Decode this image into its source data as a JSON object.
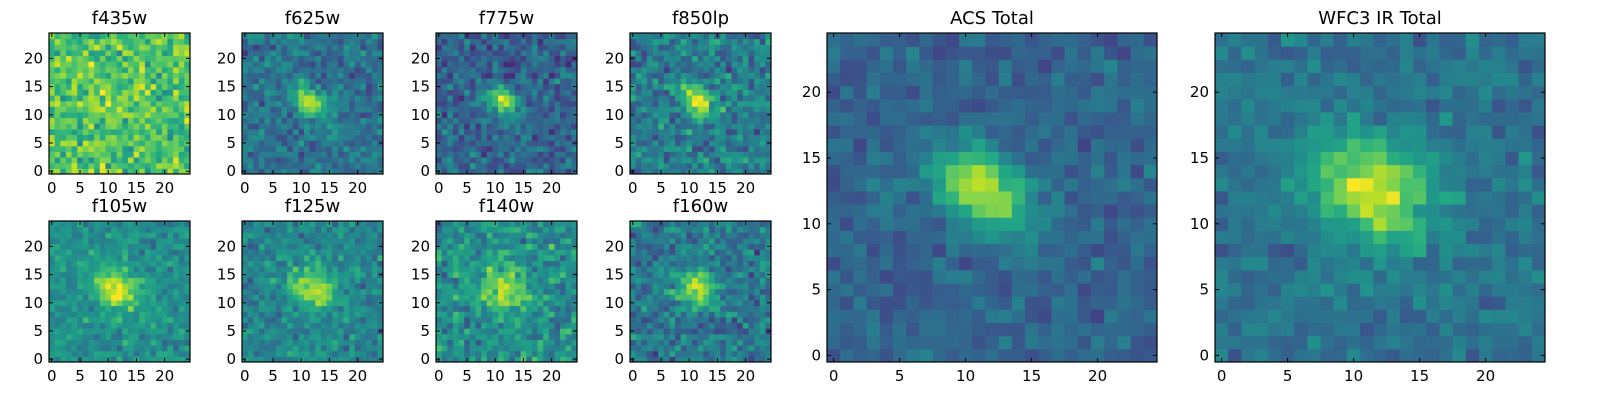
{
  "chart_data": [
    {
      "type": "heatmap",
      "title": "f435w",
      "grid_size": 25,
      "xlim": [
        -0.5,
        24.5
      ],
      "ylim": [
        -0.5,
        24.5
      ],
      "xticks": [
        0,
        5,
        10,
        15,
        20
      ],
      "yticks": [
        0,
        5,
        10,
        15,
        20
      ],
      "colormap": "viridis",
      "grid": false,
      "source": {
        "center": [
          12,
          12.5
        ],
        "sigma": [
          2.4,
          1.7
        ],
        "angle_deg": 35,
        "amplitude": 0.1,
        "background": 0.72,
        "noise": 0.16,
        "seed": 1
      }
    },
    {
      "type": "heatmap",
      "title": "f625w",
      "grid_size": 25,
      "xlim": [
        -0.5,
        24.5
      ],
      "ylim": [
        -0.5,
        24.5
      ],
      "xticks": [
        0,
        5,
        10,
        15,
        20
      ],
      "yticks": [
        0,
        5,
        10,
        15,
        20
      ],
      "colormap": "viridis",
      "grid": false,
      "source": {
        "center": [
          11.5,
          12.5
        ],
        "sigma": [
          2.3,
          1.5
        ],
        "angle_deg": -35,
        "amplitude": 0.55,
        "background": 0.38,
        "noise": 0.12,
        "seed": 2
      }
    },
    {
      "type": "heatmap",
      "title": "f775w",
      "grid_size": 25,
      "xlim": [
        -0.5,
        24.5
      ],
      "ylim": [
        -0.5,
        24.5
      ],
      "xticks": [
        0,
        5,
        10,
        15,
        20
      ],
      "yticks": [
        0,
        5,
        10,
        15,
        20
      ],
      "colormap": "viridis",
      "grid": false,
      "source": {
        "center": [
          11.5,
          12.5
        ],
        "sigma": [
          2.3,
          1.5
        ],
        "angle_deg": -35,
        "amplitude": 0.58,
        "background": 0.33,
        "noise": 0.13,
        "seed": 3
      }
    },
    {
      "type": "heatmap",
      "title": "f850lp",
      "grid_size": 25,
      "xlim": [
        -0.5,
        24.5
      ],
      "ylim": [
        -0.5,
        24.5
      ],
      "xticks": [
        0,
        5,
        10,
        15,
        20
      ],
      "yticks": [
        0,
        5,
        10,
        15,
        20
      ],
      "colormap": "viridis",
      "grid": false,
      "source": {
        "center": [
          11.5,
          12.5
        ],
        "sigma": [
          2.4,
          1.6
        ],
        "angle_deg": -35,
        "amplitude": 0.5,
        "background": 0.42,
        "noise": 0.14,
        "seed": 4
      }
    },
    {
      "type": "heatmap",
      "title": "f105w",
      "grid_size": 25,
      "xlim": [
        -0.5,
        24.5
      ],
      "ylim": [
        -0.5,
        24.5
      ],
      "xticks": [
        0,
        5,
        10,
        15,
        20
      ],
      "yticks": [
        0,
        5,
        10,
        15,
        20
      ],
      "colormap": "viridis",
      "grid": false,
      "source": {
        "center": [
          11.5,
          12.5
        ],
        "sigma": [
          3.0,
          2.4
        ],
        "angle_deg": -30,
        "amplitude": 0.42,
        "background": 0.5,
        "noise": 0.1,
        "seed": 5
      }
    },
    {
      "type": "heatmap",
      "title": "f125w",
      "grid_size": 25,
      "xlim": [
        -0.5,
        24.5
      ],
      "ylim": [
        -0.5,
        24.5
      ],
      "xticks": [
        0,
        5,
        10,
        15,
        20
      ],
      "yticks": [
        0,
        5,
        10,
        15,
        20
      ],
      "colormap": "viridis",
      "grid": false,
      "source": {
        "center": [
          12,
          12.5
        ],
        "sigma": [
          3.0,
          2.3
        ],
        "angle_deg": -30,
        "amplitude": 0.45,
        "background": 0.45,
        "noise": 0.11,
        "seed": 6
      }
    },
    {
      "type": "heatmap",
      "title": "f140w",
      "grid_size": 25,
      "xlim": [
        -0.5,
        24.5
      ],
      "ylim": [
        -0.5,
        24.5
      ],
      "xticks": [
        0,
        5,
        10,
        15,
        20
      ],
      "yticks": [
        0,
        5,
        10,
        15,
        20
      ],
      "colormap": "viridis",
      "grid": false,
      "source": {
        "center": [
          11.5,
          12.5
        ],
        "sigma": [
          3.0,
          2.4
        ],
        "angle_deg": -30,
        "amplitude": 0.4,
        "background": 0.5,
        "noise": 0.14,
        "seed": 7
      }
    },
    {
      "type": "heatmap",
      "title": "f160w",
      "grid_size": 25,
      "xlim": [
        -0.5,
        24.5
      ],
      "ylim": [
        -0.5,
        24.5
      ],
      "xticks": [
        0,
        5,
        10,
        15,
        20
      ],
      "yticks": [
        0,
        5,
        10,
        15,
        20
      ],
      "colormap": "viridis",
      "grid": false,
      "source": {
        "center": [
          11.5,
          12.5
        ],
        "sigma": [
          2.8,
          2.2
        ],
        "angle_deg": -30,
        "amplitude": 0.48,
        "background": 0.4,
        "noise": 0.13,
        "seed": 8
      }
    },
    {
      "type": "heatmap",
      "title": "ACS Total",
      "grid_size": 25,
      "xlim": [
        -0.5,
        24.5
      ],
      "ylim": [
        -0.5,
        24.5
      ],
      "xticks": [
        0,
        5,
        10,
        15,
        20
      ],
      "yticks": [
        0,
        5,
        10,
        15,
        20
      ],
      "colormap": "viridis",
      "grid": false,
      "source": {
        "center": [
          11.3,
          12.5
        ],
        "sigma": [
          2.8,
          1.7
        ],
        "angle_deg": -35,
        "amplitude": 0.62,
        "background": 0.32,
        "noise": 0.08,
        "seed": 9
      }
    },
    {
      "type": "heatmap",
      "title": "WFC3 IR Total",
      "grid_size": 25,
      "xlim": [
        -0.5,
        24.5
      ],
      "ylim": [
        -0.5,
        24.5
      ],
      "xticks": [
        0,
        5,
        10,
        15,
        20
      ],
      "yticks": [
        0,
        5,
        10,
        15,
        20
      ],
      "colormap": "viridis",
      "grid": false,
      "source": {
        "center": [
          11.5,
          12.5
        ],
        "sigma": [
          3.3,
          2.6
        ],
        "angle_deg": -30,
        "amplitude": 0.55,
        "background": 0.38,
        "noise": 0.08,
        "seed": 10
      }
    }
  ]
}
